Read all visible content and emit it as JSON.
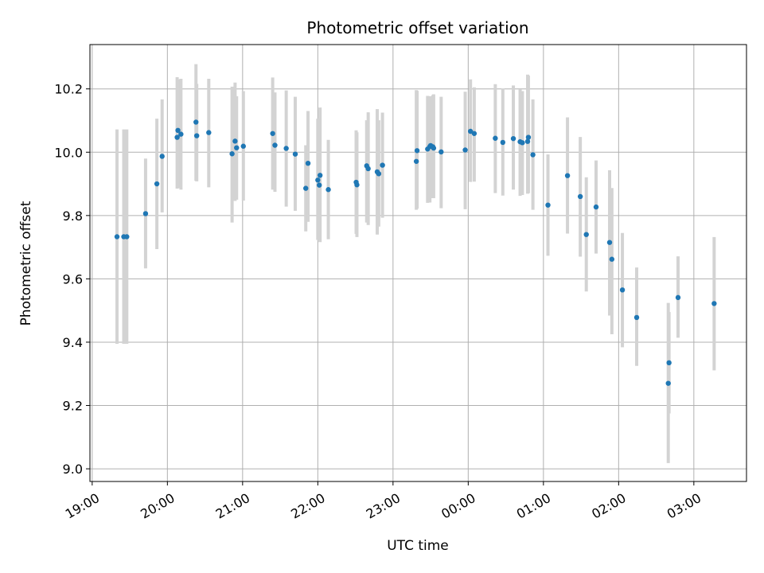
{
  "chart_data": {
    "type": "scatter",
    "title": "Photometric offset variation",
    "xlabel": "UTC time",
    "ylabel": "Photometric offset",
    "x_tick_labels": [
      "19:00",
      "20:00",
      "21:00",
      "22:00",
      "23:00",
      "00:00",
      "01:00",
      "02:00",
      "03:00"
    ],
    "y_ticks": [
      9.0,
      9.2,
      9.4,
      9.6,
      9.8,
      10.0,
      10.2
    ],
    "y_tick_labels": [
      "9.0",
      "9.2",
      "9.4",
      "9.6",
      "9.8",
      "10.0",
      "10.2"
    ],
    "xlim_hours": [
      18.97,
      27.7
    ],
    "ylim": [
      8.96,
      10.34
    ],
    "grid": true,
    "colors": {
      "point": "#1f77b4",
      "errorbar": "#d3d3d3",
      "grid": "#b0b0b0"
    },
    "series": [
      {
        "x_hours": [
          19.33,
          19.42,
          19.46,
          19.71,
          19.86,
          19.93,
          20.13,
          20.14,
          20.18,
          20.38,
          20.39,
          20.55,
          20.86,
          20.9,
          20.92,
          21.01,
          21.4,
          21.43,
          21.58,
          21.7,
          21.84,
          21.87,
          22.0,
          22.03,
          22.02,
          22.14,
          22.51,
          22.52,
          22.65,
          22.67,
          22.79,
          22.81,
          22.86,
          23.31,
          23.32,
          23.46,
          23.49,
          23.5,
          23.53,
          23.54,
          23.64,
          23.96,
          24.03,
          24.08,
          24.36,
          24.46,
          24.6,
          24.69,
          24.72,
          24.79,
          24.8,
          24.86,
          25.06,
          25.32,
          25.49,
          25.57,
          25.7,
          25.88,
          25.91,
          26.05,
          26.24,
          26.66,
          26.67,
          26.79,
          27.27
        ],
        "y": [
          9.733,
          9.733,
          9.733,
          9.806,
          9.9,
          9.987,
          10.047,
          10.069,
          10.057,
          10.095,
          10.052,
          10.062,
          9.995,
          10.035,
          10.014,
          10.019,
          10.059,
          10.022,
          10.012,
          9.994,
          9.886,
          9.965,
          9.912,
          9.927,
          9.896,
          9.882,
          9.905,
          9.897,
          9.957,
          9.948,
          9.938,
          9.932,
          9.959,
          9.971,
          10.005,
          10.01,
          10.018,
          10.021,
          10.017,
          10.013,
          10.001,
          10.007,
          10.066,
          10.059,
          10.044,
          10.031,
          10.043,
          10.033,
          10.03,
          10.034,
          10.047,
          9.992,
          9.833,
          9.926,
          9.86,
          9.74,
          9.827,
          9.715,
          9.662,
          9.565,
          9.478,
          9.27,
          9.335,
          9.541,
          9.522
        ],
        "yerr_low": [
          9.395,
          9.395,
          9.395,
          9.633,
          9.694,
          9.81,
          9.885,
          9.887,
          9.882,
          9.91,
          9.908,
          9.889,
          9.778,
          9.846,
          9.85,
          9.847,
          9.882,
          9.875,
          9.828,
          9.815,
          9.75,
          9.78,
          9.723,
          9.716,
          9.721,
          9.725,
          9.742,
          9.732,
          9.778,
          9.77,
          9.74,
          9.765,
          9.793,
          9.818,
          9.822,
          9.84,
          9.841,
          9.862,
          9.855,
          9.855,
          9.823,
          9.82,
          9.906,
          9.907,
          9.871,
          9.863,
          9.882,
          9.862,
          9.865,
          9.869,
          9.871,
          9.818,
          9.673,
          9.743,
          9.67,
          9.56,
          9.68,
          9.484,
          9.425,
          9.384,
          9.325,
          9.018,
          9.175,
          9.414,
          9.311
        ],
        "yerr_high": [
          10.072,
          10.072,
          10.072,
          9.98,
          10.106,
          10.167,
          10.237,
          10.23,
          10.232,
          10.278,
          10.216,
          10.232,
          10.207,
          10.22,
          10.177,
          10.193,
          10.236,
          10.189,
          10.195,
          10.175,
          10.022,
          10.13,
          10.106,
          10.141,
          10.069,
          10.039,
          10.069,
          10.063,
          10.101,
          10.126,
          10.136,
          10.101,
          10.125,
          10.196,
          10.194,
          10.178,
          10.177,
          10.171,
          10.18,
          10.183,
          10.175,
          10.191,
          10.23,
          10.205,
          10.215,
          10.201,
          10.211,
          10.199,
          10.193,
          10.245,
          10.242,
          10.167,
          9.993,
          10.11,
          10.048,
          9.921,
          9.974,
          9.943,
          9.887,
          9.745,
          9.636,
          9.524,
          9.495,
          9.671,
          9.732
        ]
      }
    ]
  }
}
